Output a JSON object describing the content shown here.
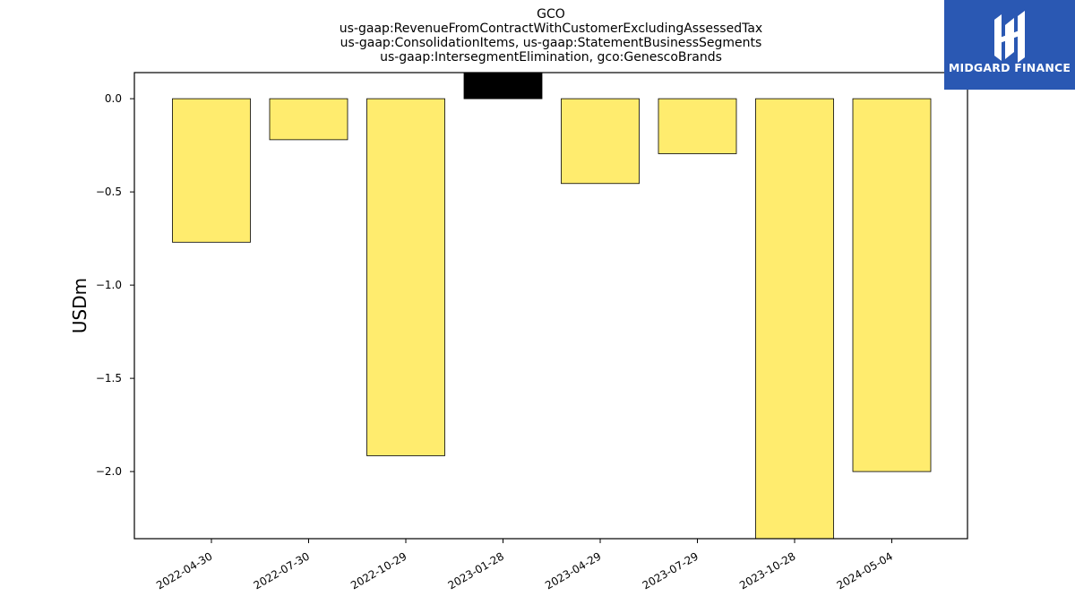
{
  "chart_data": {
    "type": "bar",
    "title_lines": [
      "GCO",
      "us-gaap:RevenueFromContractWithCustomerExcludingAssessedTax",
      "us-gaap:ConsolidationItems, us-gaap:StatementBusinessSegments",
      "us-gaap:IntersegmentElimination, gco:GenescoBrands"
    ],
    "ylabel": "USDm",
    "xlabel": "",
    "categories": [
      "2022-04-30",
      "2022-07-30",
      "2022-10-29",
      "2023-01-28",
      "2023-04-29",
      "2023-07-29",
      "2023-10-28",
      "2024-05-04"
    ],
    "values": [
      -0.77,
      -0.22,
      -1.915,
      0.14,
      -0.455,
      -0.295,
      -2.36,
      -2.0
    ],
    "ylim": [
      -2.36,
      0.14
    ],
    "yticks": [
      0.0,
      -0.5,
      -1.0,
      -1.5,
      -2.0
    ],
    "ytick_labels": [
      "0.0",
      "−0.5",
      "−1.0",
      "−1.5",
      "−2.0"
    ],
    "grid": false,
    "colors": {
      "negative": "#ffec6e",
      "positive": "#000000",
      "edge": "#000000"
    }
  },
  "logo": {
    "text": "MIDGARD FINANCE",
    "bg": "#2a58b3"
  }
}
